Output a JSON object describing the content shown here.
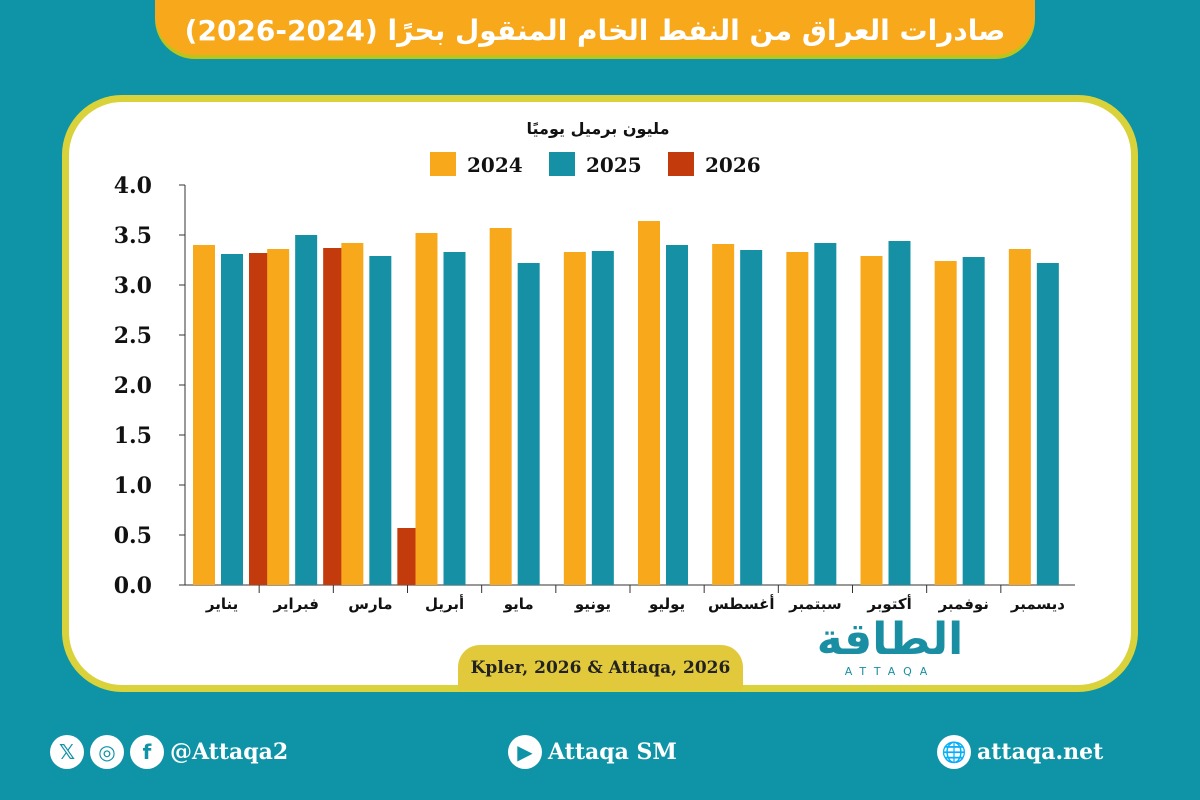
{
  "title": "صادرات العراق من النفط الخام المنقول بحرًا (2024-2026)",
  "source": "Kpler, 2026 & Attaqa, 2026",
  "logo": {
    "arabic": "الطاقة",
    "latin": "ATTAQA"
  },
  "footer": {
    "social_handle": "@Attaqa2",
    "youtube": "Attaqa SM",
    "website": "attaqa.net",
    "icons": [
      "x-icon",
      "instagram-icon",
      "facebook-icon",
      "youtube-icon",
      "globe-icon"
    ]
  },
  "colors": {
    "2024": "#f7a81b",
    "2025": "#1590a4",
    "2026": "#c33a0c",
    "background": "#0f93a6"
  },
  "chart_data": {
    "type": "bar",
    "ylabel": "مليون برميل يوميًا",
    "ylim": [
      0,
      4.0
    ],
    "yticks": [
      "0.0",
      "0.5",
      "1.0",
      "1.5",
      "2.0",
      "2.5",
      "3.0",
      "3.5",
      "4.0"
    ],
    "legend_placement": "top",
    "categories": [
      "يناير",
      "فبراير",
      "مارس",
      "أبريل",
      "مايو",
      "يونيو",
      "يوليو",
      "أغسطس",
      "سبتمبر",
      "أكتوبر",
      "نوفمبر",
      "ديسمبر"
    ],
    "series": [
      {
        "name": "2024",
        "values": [
          3.4,
          3.36,
          3.42,
          3.52,
          3.57,
          3.33,
          3.64,
          3.41,
          3.33,
          3.29,
          3.24,
          3.36
        ]
      },
      {
        "name": "2025",
        "values": [
          3.31,
          3.5,
          3.29,
          3.33,
          3.22,
          3.34,
          3.4,
          3.35,
          3.42,
          3.44,
          3.28,
          3.22
        ]
      },
      {
        "name": "2026",
        "values": [
          3.32,
          3.37,
          0.57,
          null,
          null,
          null,
          null,
          null,
          null,
          null,
          null,
          null
        ]
      }
    ]
  }
}
